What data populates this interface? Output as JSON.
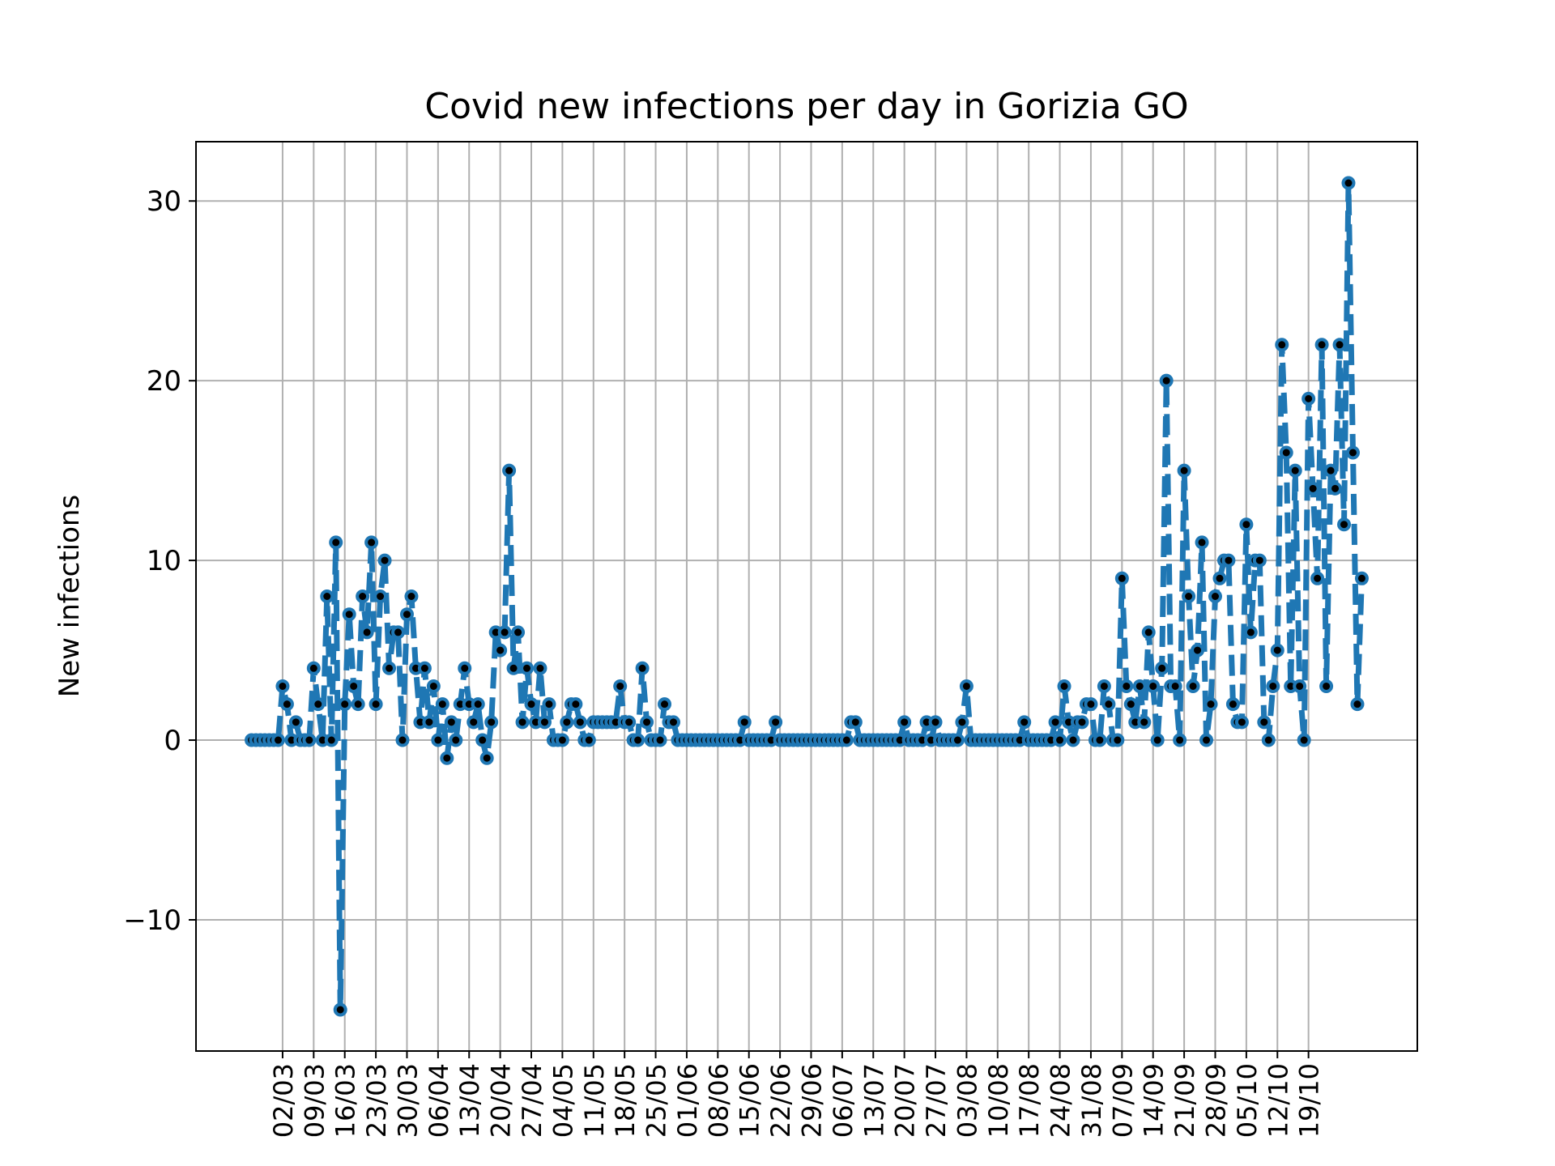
{
  "chart_data": {
    "type": "line",
    "title": "Covid new infections per day in Gorizia GO",
    "xlabel": "",
    "ylabel": "New infections",
    "ylim": [
      -17.3,
      33.3
    ],
    "yticks": [
      -10,
      0,
      10,
      20,
      30
    ],
    "grid": true,
    "x_ticks": [
      "02/03",
      "09/03",
      "16/03",
      "23/03",
      "30/03",
      "06/04",
      "13/04",
      "20/04",
      "27/04",
      "04/05",
      "11/05",
      "18/05",
      "25/05",
      "01/06",
      "08/06",
      "15/06",
      "22/06",
      "29/06",
      "06/07",
      "13/07",
      "20/07",
      "27/07",
      "03/08",
      "10/08",
      "17/08",
      "24/08",
      "31/08",
      "07/09",
      "14/09",
      "21/09",
      "28/09",
      "05/10",
      "12/10",
      "19/10"
    ],
    "series": [
      {
        "color": "#1f77b4",
        "marker_color": "#000000",
        "line_style": "dashed",
        "start_date": "2020-02-24",
        "values": [
          0,
          0,
          0,
          0,
          0,
          0,
          0,
          3,
          2,
          0,
          1,
          0,
          0,
          0,
          4,
          2,
          0,
          8,
          0,
          11,
          -15,
          2,
          7,
          3,
          2,
          8,
          6,
          11,
          2,
          8,
          10,
          4,
          6,
          6,
          0,
          7,
          8,
          4,
          1,
          4,
          1,
          3,
          0,
          2,
          -1,
          1,
          0,
          2,
          4,
          2,
          1,
          2,
          0,
          -1,
          1,
          6,
          5,
          6,
          15,
          4,
          6,
          1,
          4,
          2,
          1,
          4,
          1,
          2,
          0,
          0,
          0,
          1,
          2,
          2,
          1,
          0,
          0,
          1,
          1,
          1,
          1,
          1,
          1,
          3,
          1,
          1,
          0,
          0,
          4,
          1,
          0,
          0,
          0,
          2,
          1,
          1,
          0,
          0,
          0,
          0,
          0,
          0,
          0,
          0,
          0,
          0,
          0,
          0,
          0,
          0,
          0,
          1,
          0,
          0,
          0,
          0,
          0,
          0,
          1,
          0,
          0,
          0,
          0,
          0,
          0,
          0,
          0,
          0,
          0,
          0,
          0,
          0,
          0,
          0,
          0,
          1,
          1,
          0,
          0,
          0,
          0,
          0,
          0,
          0,
          0,
          0,
          0,
          1,
          0,
          0,
          0,
          0,
          1,
          0,
          1,
          0,
          0,
          0,
          0,
          0,
          1,
          3,
          0,
          0,
          0,
          0,
          0,
          0,
          0,
          0,
          0,
          0,
          0,
          0,
          1,
          0,
          0,
          0,
          0,
          0,
          0,
          1,
          0,
          3,
          1,
          0,
          1,
          1,
          2,
          2,
          0,
          0,
          3,
          2,
          0,
          0,
          9,
          3,
          2,
          1,
          3,
          1,
          6,
          3,
          0,
          4,
          20,
          3,
          3,
          0,
          15,
          8,
          3,
          5,
          11,
          0,
          2,
          8,
          9,
          10,
          10,
          2,
          1,
          1,
          12,
          6,
          10,
          10,
          1,
          0,
          3,
          5,
          22,
          16,
          3,
          15,
          3,
          0,
          19,
          14,
          9,
          22,
          3,
          15,
          14,
          22,
          12,
          31,
          16,
          2,
          9
        ]
      }
    ]
  }
}
